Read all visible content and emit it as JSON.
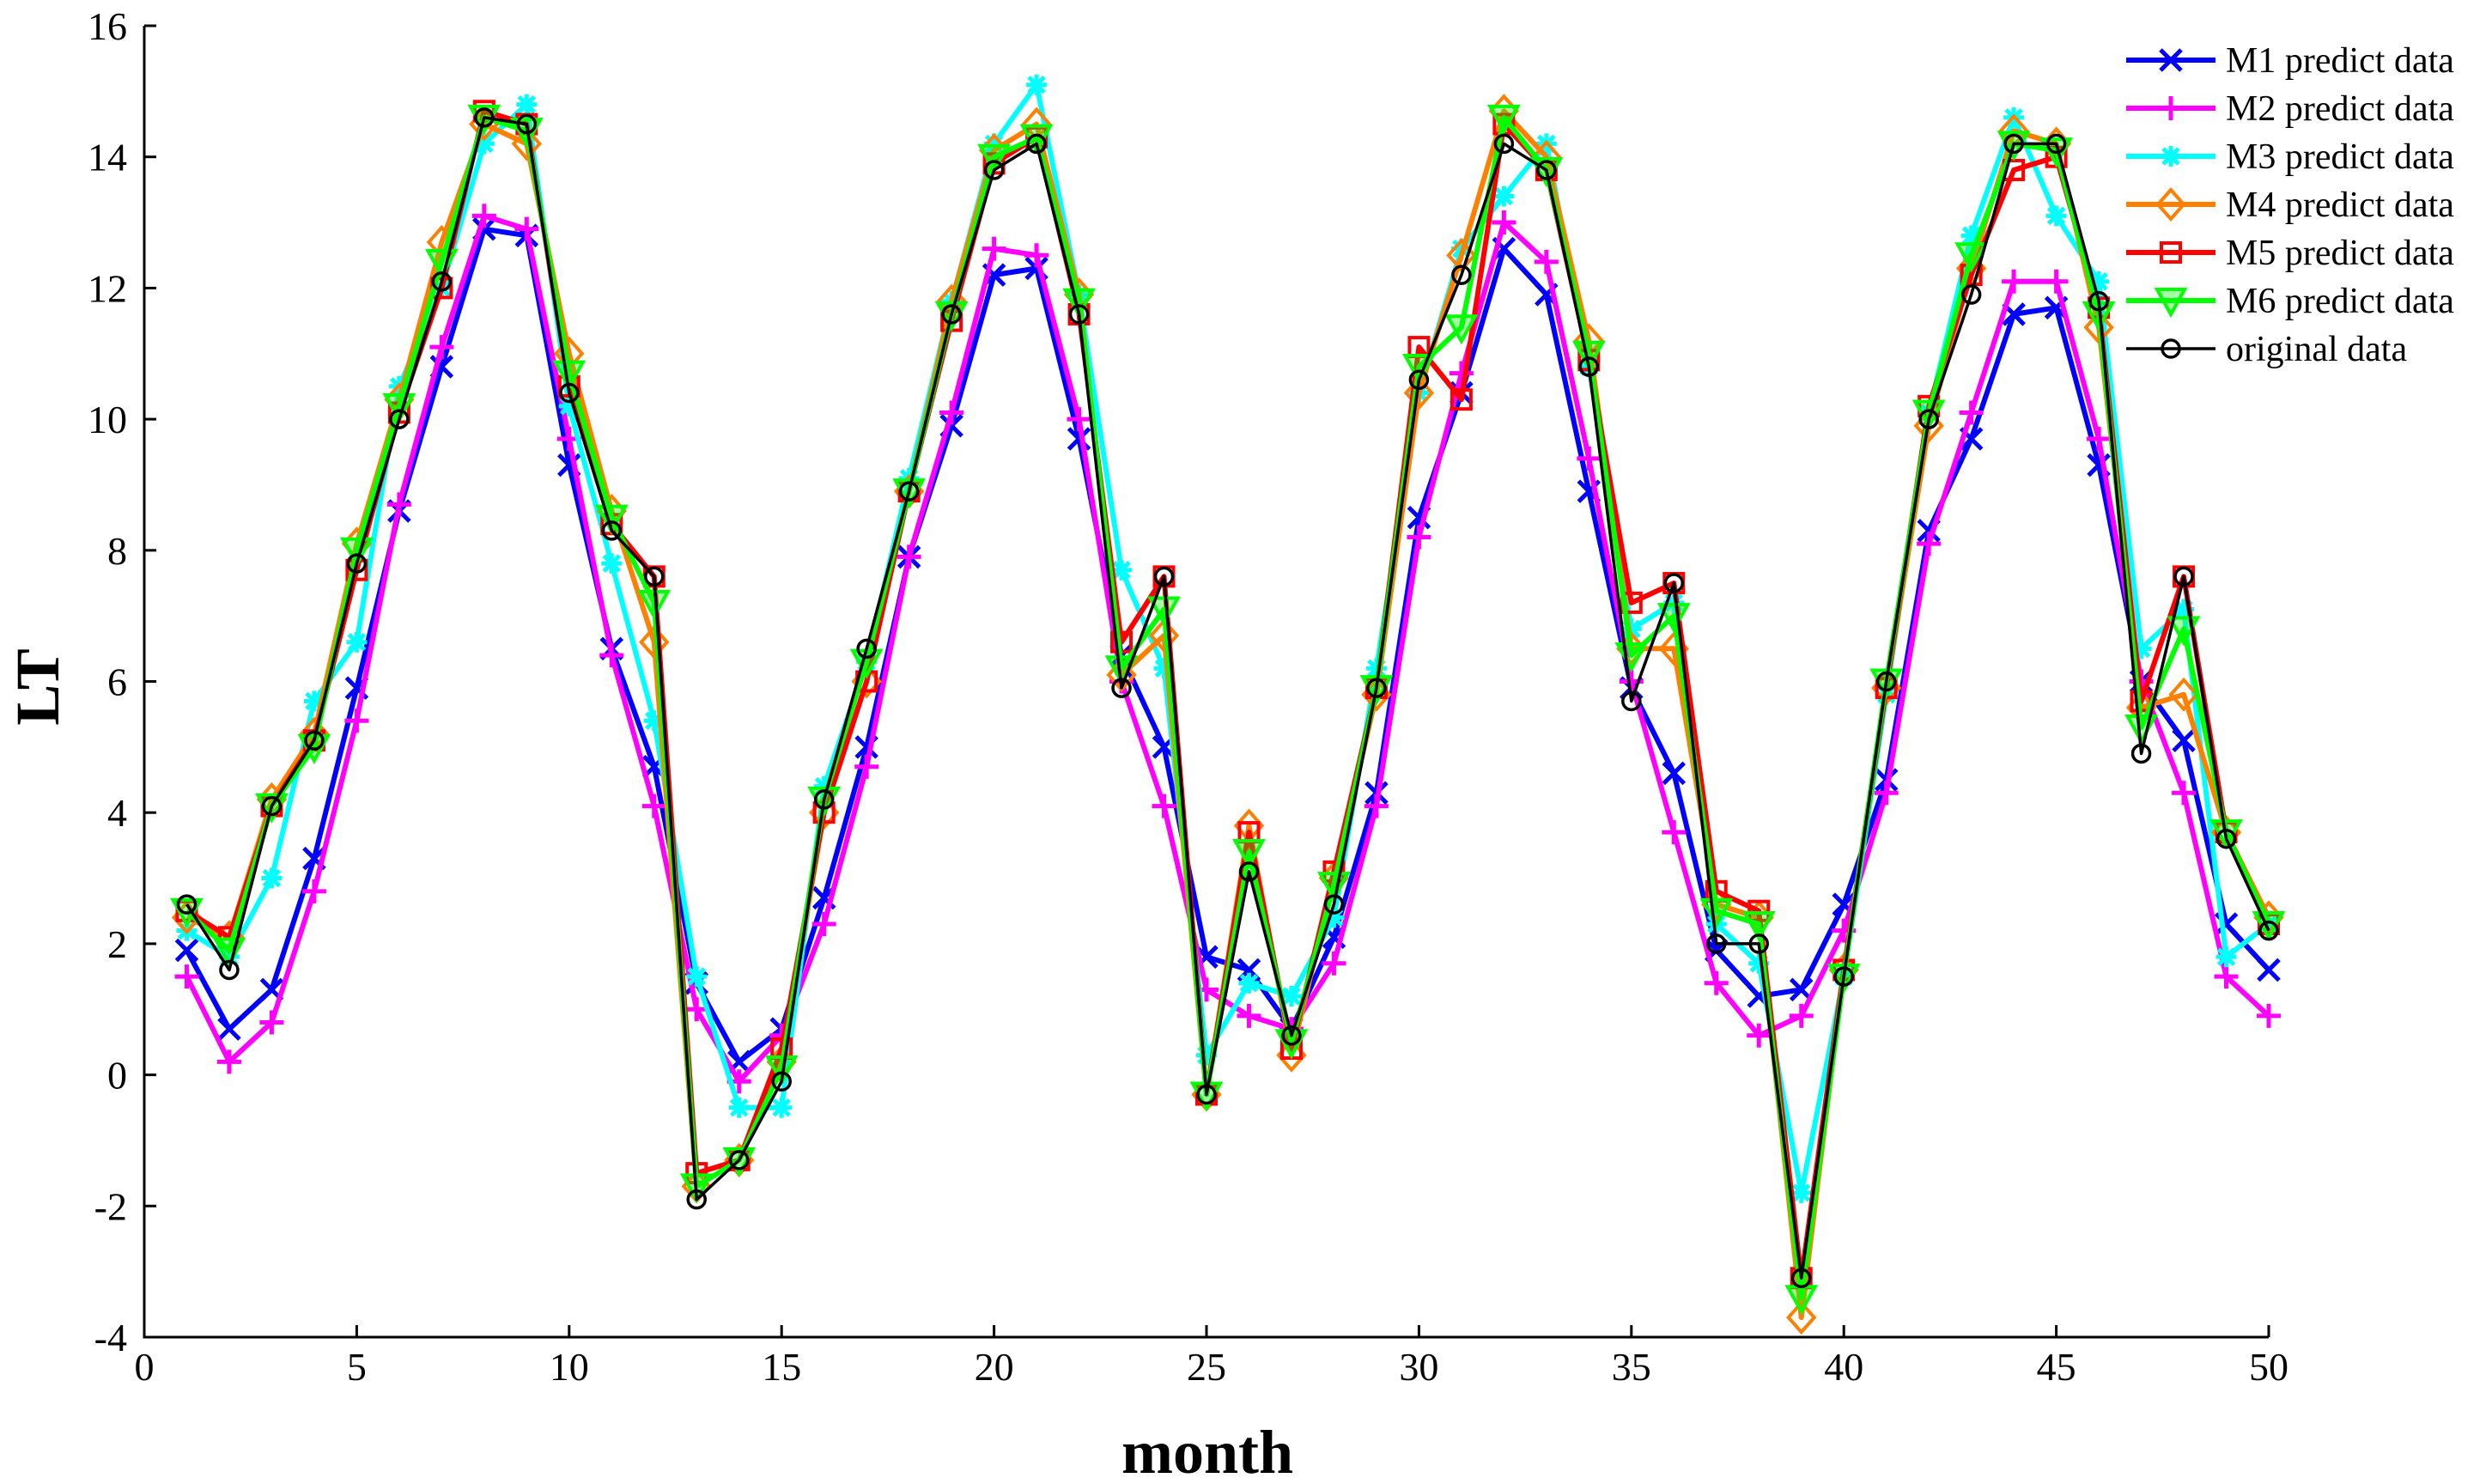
{
  "chart_data": {
    "type": "line",
    "title": "",
    "xlabel": "month",
    "ylabel": "LT",
    "xlim": [
      0,
      50
    ],
    "ylim": [
      -4,
      16
    ],
    "xticks": [
      0,
      5,
      10,
      15,
      20,
      25,
      30,
      35,
      40,
      45,
      50
    ],
    "yticks": [
      -4,
      -2,
      0,
      2,
      4,
      6,
      8,
      10,
      12,
      14,
      16
    ],
    "grid": false,
    "legend_position": "top-right",
    "x": [
      1,
      2,
      3,
      4,
      5,
      6,
      7,
      8,
      9,
      10,
      11,
      12,
      13,
      14,
      15,
      16,
      17,
      18,
      19,
      20,
      21,
      22,
      23,
      24,
      25,
      26,
      27,
      28,
      29,
      30,
      31,
      32,
      33,
      34,
      35,
      36,
      37,
      38,
      39,
      40,
      41,
      42,
      43,
      44,
      45,
      46,
      47,
      48,
      49,
      50
    ],
    "series": [
      {
        "name": "M1 predict data",
        "color": "#0000ff",
        "marker": "x",
        "values": [
          1.9,
          0.7,
          1.3,
          3.3,
          5.9,
          8.6,
          10.8,
          12.9,
          12.8,
          9.3,
          6.5,
          4.7,
          1.4,
          0.2,
          0.7,
          2.7,
          5.0,
          7.9,
          9.9,
          12.2,
          12.3,
          9.7,
          6.4,
          5.0,
          1.8,
          1.6,
          0.7,
          2.1,
          4.3,
          8.5,
          10.4,
          12.6,
          11.9,
          8.9,
          5.9,
          4.6,
          1.9,
          1.2,
          1.3,
          2.6,
          4.5,
          8.3,
          9.7,
          11.6,
          11.7,
          9.3,
          6.0,
          5.1,
          2.3,
          1.6
        ]
      },
      {
        "name": "M2 predict data",
        "color": "#ff00ff",
        "marker": "+",
        "values": [
          1.5,
          0.2,
          0.8,
          2.8,
          5.4,
          8.7,
          11.1,
          13.1,
          12.9,
          9.7,
          6.4,
          4.1,
          1.0,
          -0.1,
          0.6,
          2.3,
          4.7,
          7.9,
          10.1,
          12.6,
          12.5,
          10.0,
          6.0,
          4.1,
          1.3,
          0.9,
          0.7,
          1.7,
          4.1,
          8.2,
          10.7,
          13.0,
          12.4,
          9.4,
          6.0,
          3.7,
          1.4,
          0.6,
          0.9,
          2.2,
          4.3,
          8.1,
          10.1,
          12.1,
          12.1,
          9.7,
          6.0,
          4.3,
          1.5,
          0.9
        ]
      },
      {
        "name": "M3 predict data",
        "color": "#00ffff",
        "marker": "*",
        "values": [
          2.2,
          1.8,
          3.0,
          5.7,
          6.6,
          10.5,
          12.0,
          14.2,
          14.8,
          10.2,
          7.8,
          5.4,
          1.5,
          -0.5,
          -0.5,
          4.4,
          6.3,
          9.1,
          11.8,
          14.2,
          15.1,
          11.9,
          7.7,
          6.2,
          0.3,
          1.4,
          1.2,
          2.4,
          6.2,
          10.4,
          12.6,
          13.4,
          14.2,
          10.8,
          6.8,
          7.2,
          2.3,
          1.7,
          -1.8,
          1.5,
          5.8,
          10.1,
          12.8,
          14.6,
          13.1,
          12.1,
          6.5,
          7.1,
          1.8,
          2.3
        ]
      },
      {
        "name": "M4 predict data",
        "color": "#ff8000",
        "marker": "diamond",
        "values": [
          2.4,
          2.1,
          4.2,
          5.2,
          8.1,
          10.3,
          12.7,
          14.5,
          14.2,
          11.0,
          8.6,
          6.6,
          -1.7,
          -1.3,
          0.2,
          4.0,
          6.0,
          8.9,
          11.8,
          14.1,
          14.5,
          11.9,
          6.1,
          6.7,
          -0.3,
          3.8,
          0.3,
          3.0,
          5.8,
          10.4,
          12.5,
          14.7,
          14.0,
          11.2,
          6.5,
          6.5,
          2.6,
          2.4,
          -3.7,
          1.6,
          5.9,
          9.9,
          12.3,
          14.4,
          14.2,
          11.4,
          5.6,
          5.8,
          3.7,
          2.4
        ]
      },
      {
        "name": "M5 predict data",
        "color": "#ff0000",
        "marker": "square",
        "values": [
          2.5,
          2.1,
          4.1,
          5.1,
          7.7,
          10.1,
          12.0,
          14.7,
          14.5,
          10.5,
          8.4,
          7.6,
          -1.5,
          -1.3,
          0.4,
          4.0,
          6.0,
          8.9,
          11.5,
          13.9,
          14.3,
          11.6,
          6.6,
          7.6,
          -0.3,
          3.7,
          0.4,
          3.1,
          5.9,
          11.1,
          10.3,
          14.5,
          13.8,
          10.9,
          7.2,
          7.5,
          2.8,
          2.5,
          -3.1,
          1.6,
          5.9,
          10.2,
          12.2,
          13.8,
          14.0,
          11.7,
          5.7,
          7.6,
          3.7,
          2.3
        ]
      },
      {
        "name": "M6 predict data",
        "color": "#00ff00",
        "marker": "triangle-down",
        "values": [
          2.5,
          1.9,
          4.1,
          5.0,
          8.0,
          10.2,
          12.4,
          14.6,
          14.4,
          10.7,
          8.5,
          7.2,
          -1.7,
          -1.3,
          0.1,
          4.2,
          6.3,
          8.9,
          11.6,
          14.0,
          14.3,
          11.8,
          6.2,
          7.1,
          -0.3,
          3.4,
          0.5,
          2.9,
          5.9,
          10.8,
          11.4,
          14.6,
          13.8,
          11.0,
          6.4,
          7.0,
          2.5,
          2.3,
          -3.4,
          1.5,
          6.0,
          10.1,
          12.5,
          14.2,
          14.1,
          11.6,
          5.3,
          6.8,
          3.7,
          2.3
        ]
      },
      {
        "name": "original data",
        "color": "#000000",
        "marker": "circle",
        "values": [
          2.6,
          1.6,
          4.1,
          5.1,
          7.8,
          10.0,
          12.1,
          14.6,
          14.5,
          10.4,
          8.3,
          7.6,
          -1.9,
          -1.3,
          -0.1,
          4.2,
          6.5,
          8.9,
          11.6,
          13.8,
          14.2,
          11.6,
          5.9,
          7.6,
          -0.3,
          3.1,
          0.6,
          2.6,
          5.9,
          10.6,
          12.2,
          14.2,
          13.8,
          10.8,
          5.7,
          7.5,
          2.0,
          2.0,
          -3.1,
          1.5,
          6.0,
          10.0,
          11.9,
          14.2,
          14.2,
          11.8,
          4.9,
          7.6,
          3.6,
          2.2
        ]
      }
    ]
  }
}
